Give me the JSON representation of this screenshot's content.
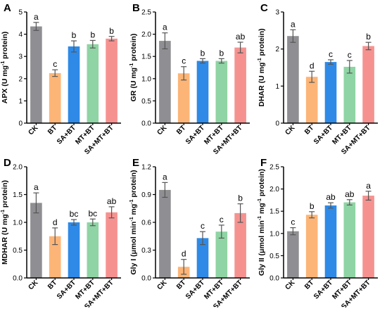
{
  "colors": {
    "CK": "#8f8f93",
    "BT": "#fcb577",
    "SA+BT": "#2e8ae6",
    "MT+BT": "#8fd4a4",
    "SA+MT+BT": "#f59290",
    "axis": "#000000"
  },
  "chart_data": [
    {
      "type": "bar",
      "panel_letter": "A",
      "ylabel": "APX (U mg-1 protein)",
      "ylabel_parts": {
        "pre": "APX (U mg",
        "sup": "-1",
        "post": " protein)"
      },
      "categories": [
        "CK",
        "BT",
        "SA+BT",
        "MT+BT",
        "SA+MT+BT"
      ],
      "values": [
        4.35,
        2.25,
        3.45,
        3.55,
        3.8
      ],
      "errors": [
        0.18,
        0.15,
        0.25,
        0.17,
        0.1
      ],
      "labels": [
        "a",
        "c",
        "b",
        "b",
        "b"
      ],
      "ylim": [
        0,
        5
      ],
      "yticks": [
        "0",
        "1",
        "2",
        "3",
        "4",
        "5"
      ],
      "ytick_values": [
        0,
        1,
        2,
        3,
        4,
        5
      ]
    },
    {
      "type": "bar",
      "panel_letter": "B",
      "ylabel": "GR (U mg-1 protein)",
      "ylabel_parts": {
        "pre": "GR (U mg",
        "sup": "-1",
        "post": " protein)"
      },
      "categories": [
        "CK",
        "BT",
        "SA+BT",
        "MT+BT",
        "SA+MT+BT"
      ],
      "values": [
        1.85,
        1.12,
        1.4,
        1.4,
        1.7
      ],
      "errors": [
        0.18,
        0.15,
        0.05,
        0.05,
        0.12
      ],
      "labels": [
        "a",
        "c",
        "b",
        "b",
        "ab"
      ],
      "ylim": [
        0,
        2.5
      ],
      "yticks": [
        "0.0",
        "0.5",
        "1.0",
        "1.5",
        "2.0",
        "2.5"
      ],
      "ytick_values": [
        0,
        0.5,
        1,
        1.5,
        2,
        2.5
      ]
    },
    {
      "type": "bar",
      "panel_letter": "C",
      "ylabel": "DHAR (U mg-1 protein)",
      "ylabel_parts": {
        "pre": "DHAR (U mg",
        "sup": "-1",
        "post": " protein)"
      },
      "categories": [
        "CK",
        "BT",
        "SA+BT",
        "MT+BT",
        "SA+MT+BT"
      ],
      "values": [
        2.35,
        1.25,
        1.65,
        1.52,
        2.08
      ],
      "errors": [
        0.17,
        0.15,
        0.06,
        0.17,
        0.1
      ],
      "labels": [
        "a",
        "d",
        "c",
        "c",
        "b"
      ],
      "ylim": [
        0,
        3
      ],
      "yticks": [
        "0",
        "1",
        "2",
        "3"
      ],
      "ytick_values": [
        0,
        1,
        2,
        3
      ]
    },
    {
      "type": "bar",
      "panel_letter": "D",
      "ylabel": "MDHAR (U mg-1 protein)",
      "ylabel_parts": {
        "pre": "MDHAR (U mg",
        "sup": "-1",
        "post": " protein)"
      },
      "categories": [
        "CK",
        "BT",
        "SA+BT",
        "MT+BT",
        "SA+MT+BT"
      ],
      "values": [
        1.35,
        0.75,
        1.0,
        1.0,
        1.18
      ],
      "errors": [
        0.18,
        0.15,
        0.05,
        0.06,
        0.1
      ],
      "labels": [
        "a",
        "d",
        "bc",
        "bc",
        "ab"
      ],
      "ylim": [
        0,
        2
      ],
      "yticks": [
        "0.0",
        "0.5",
        "1.0",
        "1.5",
        "2.0"
      ],
      "ytick_values": [
        0,
        0.5,
        1,
        1.5,
        2
      ]
    },
    {
      "type": "bar",
      "panel_letter": "E",
      "ylabel": "Gly I (μmol min-1 mg-1 protein)",
      "ylabel_parts": {
        "pre": "Gly I (μmol min",
        "sup": "-1",
        "mid": " mg",
        "sup2": "-1",
        "post": " protein)"
      },
      "categories": [
        "CK",
        "BT",
        "SA+BT",
        "MT+BT",
        "SA+MT+BT"
      ],
      "values": [
        0.95,
        0.12,
        0.43,
        0.5,
        0.7
      ],
      "errors": [
        0.08,
        0.08,
        0.07,
        0.07,
        0.1
      ],
      "labels": [
        "a",
        "d",
        "c",
        "c",
        "b"
      ],
      "ylim": [
        0,
        1.2
      ],
      "yticks": [
        "0.0",
        "0.3",
        "0.6",
        "0.9",
        "1.2"
      ],
      "ytick_values": [
        0,
        0.3,
        0.6,
        0.9,
        1.2
      ]
    },
    {
      "type": "bar",
      "panel_letter": "F",
      "ylabel": "Gly II (μmol min-1 mg-1 protein)",
      "ylabel_parts": {
        "pre": "Gly II (μmol min",
        "sup": "-1",
        "mid": " mg",
        "sup2": "-1",
        "post": " protein)"
      },
      "categories": [
        "CK",
        "BT",
        "SA+BT",
        "MT+BT",
        "SA+MT+BT"
      ],
      "values": [
        1.05,
        1.42,
        1.63,
        1.7,
        1.85
      ],
      "errors": [
        0.08,
        0.07,
        0.06,
        0.06,
        0.1
      ],
      "labels": [
        "c",
        "b",
        "ab",
        "ab",
        "a"
      ],
      "ylim": [
        0,
        2.5
      ],
      "yticks": [
        "0.0",
        "0.5",
        "1.0",
        "1.5",
        "2.0",
        "2.5"
      ],
      "ytick_values": [
        0,
        0.5,
        1,
        1.5,
        2,
        2.5
      ]
    }
  ]
}
